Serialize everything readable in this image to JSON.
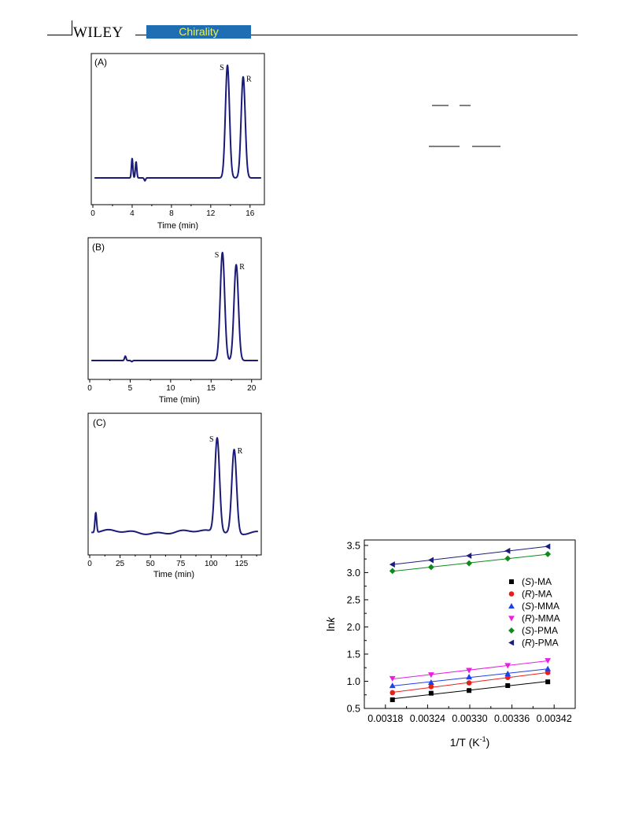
{
  "header": {
    "page_number": "",
    "publisher": "WILEY",
    "journal": "Chirality"
  },
  "chromatograms": [
    {
      "panel_label": "(A)",
      "xlabel": "Time (min)",
      "x_ticks": [
        "0",
        "4",
        "8",
        "12",
        "16"
      ],
      "peak_labels": [
        "S",
        "R"
      ],
      "line_color": "#1a1a78"
    },
    {
      "panel_label": "(B)",
      "xlabel": "Time (min)",
      "x_ticks": [
        "0",
        "5",
        "10",
        "15",
        "20"
      ],
      "peak_labels": [
        "S",
        "R"
      ],
      "line_color": "#1a1a78"
    },
    {
      "panel_label": "(C)",
      "xlabel": "Time (min)",
      "x_ticks": [
        "0",
        "25",
        "50",
        "75",
        "100",
        "125"
      ],
      "peak_labels": [
        "S",
        "R"
      ],
      "line_color": "#1a1a78"
    }
  ],
  "chart_data": [
    {
      "type": "line",
      "panel": "(A)",
      "xlim": [
        0,
        17.3
      ],
      "x_ticks": [
        0,
        4,
        8,
        12,
        16
      ],
      "xlabel": "Time (min)",
      "peaks": [
        {
          "label": "S",
          "retention_time": 13.7,
          "relative_height": 0.98
        },
        {
          "label": "R",
          "retention_time": 15.3,
          "relative_height": 0.88
        }
      ],
      "minor_peaks": [
        {
          "retention_time": 4.0,
          "relative_height": 0.17
        },
        {
          "retention_time": 4.4,
          "relative_height": 0.14
        },
        {
          "retention_time": 5.3,
          "relative_height": 0.05
        }
      ]
    },
    {
      "type": "line",
      "panel": "(B)",
      "xlim": [
        0,
        21
      ],
      "x_ticks": [
        0,
        5,
        10,
        15,
        20
      ],
      "xlabel": "Time (min)",
      "peaks": [
        {
          "label": "S",
          "retention_time": 16.4,
          "relative_height": 0.98
        },
        {
          "label": "R",
          "retention_time": 18.1,
          "relative_height": 0.87
        }
      ],
      "minor_peaks": [
        {
          "retention_time": 4.4,
          "relative_height": 0.04
        },
        {
          "retention_time": 5.2,
          "relative_height": 0.02
        }
      ]
    },
    {
      "type": "line",
      "panel": "(C)",
      "xlim": [
        0,
        140
      ],
      "x_ticks": [
        0,
        25,
        50,
        75,
        100,
        125
      ],
      "xlabel": "Time (min)",
      "peaks": [
        {
          "label": "S",
          "retention_time": 105,
          "relative_height": 0.96
        },
        {
          "label": "R",
          "retention_time": 119,
          "relative_height": 0.84
        }
      ],
      "minor_peaks": [
        {
          "retention_time": 5,
          "relative_height": 0.2
        }
      ]
    },
    {
      "type": "scatter",
      "xlabel": "1/T (K",
      "xlabel_sup": "-1",
      "ylabel": "ln",
      "ylabel_italic": "k",
      "xlim": [
        0.00315,
        0.00345
      ],
      "ylim": [
        0.5,
        3.6
      ],
      "x_ticks": [
        0.00318,
        0.00324,
        0.0033,
        0.00336,
        0.00342
      ],
      "x_tick_labels": [
        "0.00318",
        "0.00324",
        "0.00330",
        "0.00336",
        "0.00342"
      ],
      "y_ticks": [
        0.5,
        1.0,
        1.5,
        2.0,
        2.5,
        3.0,
        3.5
      ],
      "y_tick_labels": [
        "0.5",
        "1.0",
        "1.5",
        "2.0",
        "2.5",
        "3.0",
        "3.5"
      ],
      "x": [
        0.00319,
        0.003245,
        0.003299,
        0.003354,
        0.003411
      ],
      "series": [
        {
          "name": "(S)-MA",
          "prefix": "(",
          "italic": "S",
          "suffix": ")-MA",
          "marker": "square",
          "color": "#000000",
          "values": [
            0.66,
            0.78,
            0.83,
            0.92,
            0.99
          ]
        },
        {
          "name": "(R)-MA",
          "prefix": "(",
          "italic": "R",
          "suffix": ")-MA",
          "marker": "circle",
          "color": "#e8201a",
          "values": [
            0.79,
            0.9,
            0.97,
            1.07,
            1.16
          ]
        },
        {
          "name": "(S)-MMA",
          "prefix": "(",
          "italic": "S",
          "suffix": ")-MMA",
          "marker": "triangle-up",
          "color": "#1f3fe8",
          "values": [
            0.92,
            0.98,
            1.08,
            1.14,
            1.23
          ]
        },
        {
          "name": "(R)-MMA",
          "prefix": "(",
          "italic": "R",
          "suffix": ")-MMA",
          "marker": "triangle-down",
          "color": "#e81fe0",
          "values": [
            1.05,
            1.12,
            1.2,
            1.29,
            1.38
          ]
        },
        {
          "name": "(S)-PMA",
          "prefix": "(",
          "italic": "S",
          "suffix": ")-PMA",
          "marker": "diamond",
          "color": "#0f8a1a",
          "values": [
            3.03,
            3.1,
            3.17,
            3.26,
            3.34
          ]
        },
        {
          "name": "(R)-PMA",
          "prefix": "(",
          "italic": "R",
          "suffix": ")-PMA",
          "marker": "triangle-left",
          "color": "#1c1c7a",
          "values": [
            3.15,
            3.23,
            3.31,
            3.4,
            3.48
          ]
        }
      ],
      "legend_position": "right-middle",
      "grid": false
    }
  ]
}
